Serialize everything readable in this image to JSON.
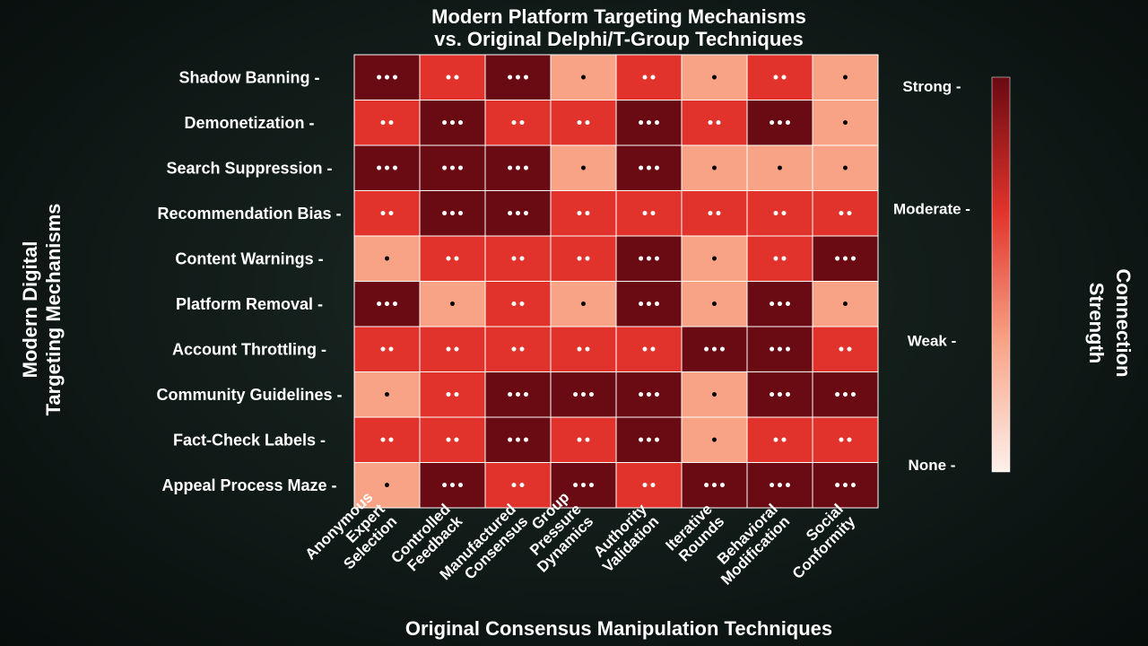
{
  "chart_data": {
    "type": "heatmap",
    "title_lines": [
      "Modern Platform Targeting Mechanisms",
      "vs. Original Delphi/T-Group Techniques"
    ],
    "xlabel": "Original Consensus Manipulation Techniques",
    "ylabel_lines": [
      "Modern Digital",
      "Targeting Mechanisms"
    ],
    "colorbar_label_lines": [
      "Connection",
      "Strength"
    ],
    "rows": [
      "Shadow Banning -",
      "Demonetization -",
      "Search Suppression -",
      "Recommendation Bias -",
      "Content Warnings -",
      "Platform Removal -",
      "Account Throttling -",
      "Community Guidelines -",
      "Fact-Check Labels -",
      "Appeal Process Maze -"
    ],
    "columns": [
      [
        "Anonymous",
        "Expert",
        "Selection"
      ],
      [
        "Controlled",
        "Feedback"
      ],
      [
        "Manufactured",
        "Consensus"
      ],
      [
        "Group",
        "Pressure",
        "Dynamics"
      ],
      [
        "Authority",
        "Validation"
      ],
      [
        "Iterative",
        "Rounds"
      ],
      [
        "Behavioral",
        "Modification"
      ],
      [
        "Social",
        "Conformity"
      ]
    ],
    "values": [
      [
        3,
        2,
        3,
        1,
        2,
        1,
        2,
        1
      ],
      [
        2,
        3,
        2,
        2,
        3,
        2,
        3,
        1
      ],
      [
        3,
        3,
        3,
        1,
        3,
        1,
        1,
        1
      ],
      [
        2,
        3,
        3,
        2,
        2,
        2,
        2,
        2
      ],
      [
        1,
        2,
        2,
        2,
        3,
        1,
        2,
        3
      ],
      [
        3,
        1,
        2,
        1,
        3,
        1,
        3,
        1
      ],
      [
        2,
        2,
        2,
        2,
        2,
        3,
        3,
        2
      ],
      [
        1,
        2,
        3,
        3,
        3,
        1,
        3,
        3
      ],
      [
        2,
        2,
        3,
        2,
        3,
        1,
        2,
        2
      ],
      [
        1,
        3,
        2,
        3,
        2,
        3,
        3,
        3
      ]
    ],
    "cell_symbols": {
      "1": "•",
      "2": "••",
      "3": "•••"
    },
    "colorbar": {
      "range": [
        0,
        3
      ],
      "ticks": [
        {
          "value": 3,
          "label": "Strong -"
        },
        {
          "value": 2,
          "label": "Moderate -"
        },
        {
          "value": 1,
          "label": "Weak -"
        },
        {
          "value": 0,
          "label": "None -"
        }
      ]
    },
    "colors": {
      "0": "#fdf0eb",
      "1": "#f8a386",
      "2": "#e1332b",
      "3": "#6a0a13"
    }
  }
}
